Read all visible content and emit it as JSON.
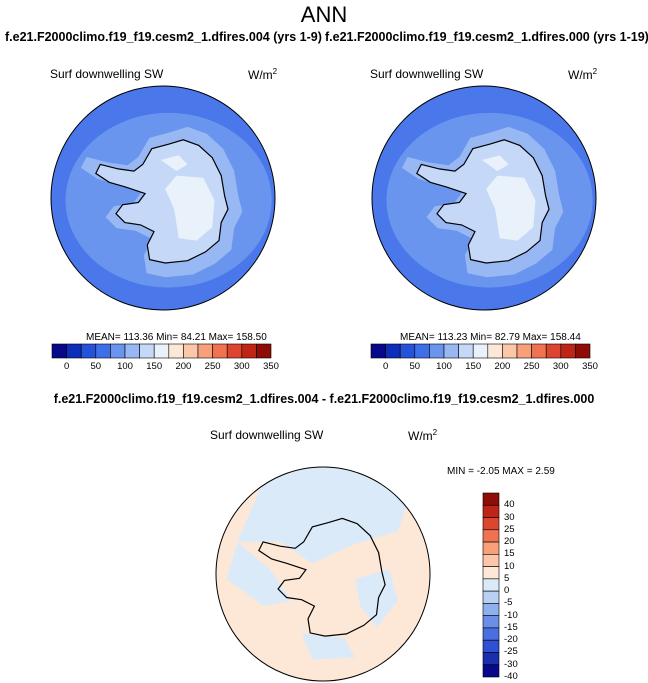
{
  "figure": {
    "title": "ANN",
    "case_left": "f.e21.F2000climo.f19_f19.cesm2_1.dfires.004 (yrs 1-9)",
    "case_right": "f.e21.F2000climo.f19_f19.cesm2_1.dfires.000 (yrs 1-19)",
    "diff_title": "f.e21.F2000climo.f19_f19.cesm2_1.dfires.004 - f.e21.F2000climo.f19_f19.cesm2_1.dfires.000"
  },
  "panels": [
    {
      "label": "Surf downwelling SW",
      "unit": "W/m",
      "unit_exp": "2",
      "stats": "MEAN= 113.36  Min=  84.21  Max= 158.50"
    },
    {
      "label": "Surf downwelling SW",
      "unit": "W/m",
      "unit_exp": "2",
      "stats": "MEAN= 113.23  Min=  82.79  Max= 158.44"
    },
    {
      "label": "Surf downwelling SW",
      "unit": "W/m",
      "unit_exp": "2",
      "stats": "MIN =  -2.05 MAX =   2.59"
    }
  ],
  "colorbar_abs": {
    "colors": [
      "#08088a",
      "#0d2fb8",
      "#2552d9",
      "#3f6fe8",
      "#6a95ef",
      "#98b8f3",
      "#c6d8f7",
      "#e9f1fb",
      "#fde8d8",
      "#fcc7a8",
      "#f8a07a",
      "#ef7350",
      "#dc4530",
      "#be2516",
      "#8e0d06"
    ],
    "labels": [
      "0",
      "50",
      "100",
      "150",
      "200",
      "250",
      "300",
      "350"
    ]
  },
  "colorbar_diff": {
    "colors": [
      "#8e0d06",
      "#be2516",
      "#dc4530",
      "#ef7350",
      "#f8a07a",
      "#fcc7a8",
      "#fde8d8",
      "#dbeaf8",
      "#b9d0f3",
      "#8fb0ee",
      "#6a8fe8",
      "#4a6fe0",
      "#2f50d4",
      "#1a2fb0",
      "#08088a"
    ],
    "labels": [
      "40",
      "30",
      "25",
      "20",
      "15",
      "10",
      "5",
      "0",
      "-5",
      "-10",
      "-15",
      "-20",
      "-25",
      "-30",
      "-40"
    ]
  },
  "map_colors": {
    "ocean_far": "#4a78ea",
    "ocean_mid": "#6a95ef",
    "ocean_near": "#98b8f3",
    "coast_ice": "#c6d8f7",
    "plateau": "#e9f1fb",
    "diff_pos": "#fde8d8",
    "diff_neg": "#dbeaf8"
  }
}
